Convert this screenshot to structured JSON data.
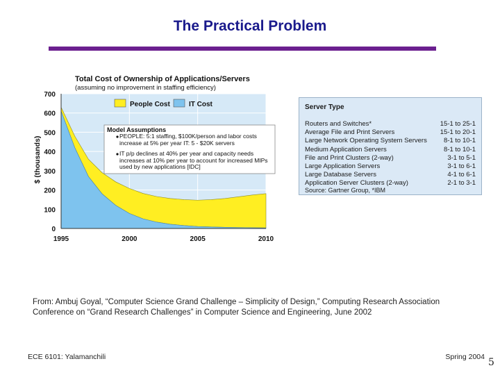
{
  "slide": {
    "title": "The Practical Problem",
    "citation_line1": "From: Ambuj Goyal, “Computer Science Grand Challenge – Simplicity of Design,” Computing Research Association",
    "citation_line2": "Conference on “Grand Research Challenges” in Computer Science and Engineering, June 2002",
    "footer_left": "ECE 6101: Yalamanchili",
    "footer_right": "Spring 2004",
    "page_number": "5",
    "accent_color": "#6b1f8f",
    "title_color": "#1a1a8c"
  },
  "chart_data": {
    "type": "area",
    "title": "Total Cost of Ownership of Applications/Servers",
    "subtitle": "(assuming no improvement in staffing efficiency)",
    "ylabel": "$ (thousands)",
    "xlabel": "",
    "ylim": [
      0,
      700
    ],
    "xlim": [
      1995,
      2010
    ],
    "y_ticks": [
      0,
      100,
      200,
      300,
      400,
      500,
      600,
      700
    ],
    "x_ticks": [
      1995,
      2000,
      2005,
      2010
    ],
    "grid": true,
    "legend_position": "top",
    "x": [
      1995,
      1996,
      1997,
      1998,
      1999,
      2000,
      2001,
      2002,
      2003,
      2004,
      2005,
      2006,
      2007,
      2008,
      2009,
      2010
    ],
    "series": [
      {
        "name": "IT Cost",
        "color": "#7ec3ee",
        "values": [
          610,
          420,
          270,
          180,
          120,
          78,
          50,
          33,
          22,
          15,
          10,
          8,
          6,
          5,
          4,
          3
        ]
      },
      {
        "name": "People Cost",
        "color": "#ffee22",
        "values": [
          20,
          60,
          90,
          110,
          122,
          130,
          132,
          133,
          134,
          135,
          137,
          142,
          150,
          160,
          170,
          178
        ]
      }
    ],
    "annotations": [
      {
        "title": "Model Assumptions",
        "bullets": [
          "PEOPLE: 5:1 staffing, $100K/person and labor costs increase at 5% per year IT: 5 - $20K servers",
          "IT p/p declines at 40% per year and capacity needs increases at 10% per year to account for increased MIPs used by new applications [IDC]"
        ]
      }
    ]
  },
  "server_table": {
    "header": "Server Type",
    "rows": [
      {
        "type": "Routers and Switches*",
        "ratio": "15-1 to 25-1"
      },
      {
        "type": "Average File and Print Servers",
        "ratio": "15-1 to 20-1"
      },
      {
        "type": "Large Network Operating System Servers",
        "ratio": "8-1 to 10-1"
      },
      {
        "type": "Medium Application Servers",
        "ratio": "8-1 to 10-1"
      },
      {
        "type": "File and Print Clusters (2-way)",
        "ratio": "3-1 to 5-1"
      },
      {
        "type": "Large Application Servers",
        "ratio": "3-1 to 6-1"
      },
      {
        "type": "Large Database Servers",
        "ratio": "4-1 to 6-1"
      },
      {
        "type": "Application Server Clusters (2-way)",
        "ratio": "2-1 to 3-1"
      }
    ],
    "source": "Source: Gartner Group, *IBM"
  }
}
